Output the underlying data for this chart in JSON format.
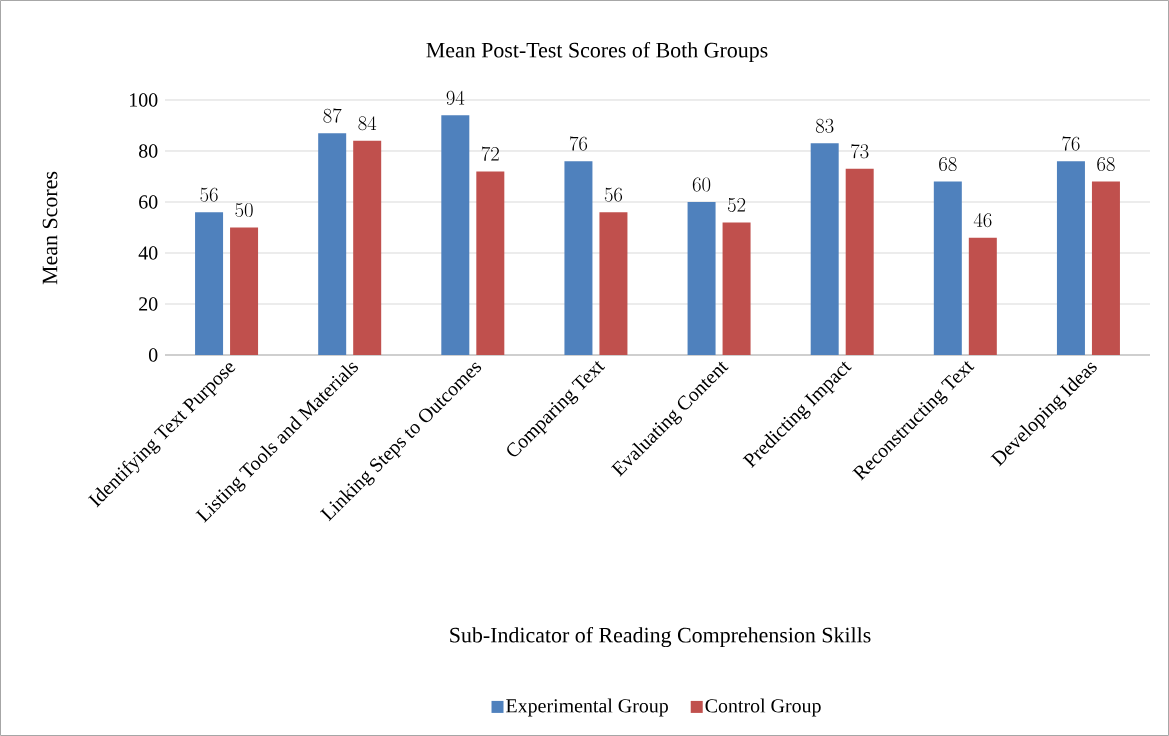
{
  "chart_data": {
    "type": "bar",
    "title": "Mean Post-Test Scores of Both Groups",
    "xlabel": "Sub-Indicator of Reading Comprehension Skills",
    "ylabel": "Mean Scores",
    "categories": [
      "Identifying Text Purpose",
      "Listing Tools and Materials",
      "Linking Steps to Outcomes",
      "Comparing Text",
      "Evaluating Content",
      "Predicting Impact",
      "Reconstructing Text",
      "Developing Ideas"
    ],
    "series": [
      {
        "name": "Experimental Group",
        "color": "#4f81bd",
        "values": [
          56,
          87,
          94,
          76,
          60,
          83,
          68,
          76
        ]
      },
      {
        "name": "Control Group",
        "color": "#c0504d",
        "values": [
          50,
          84,
          72,
          56,
          52,
          73,
          46,
          68
        ]
      }
    ],
    "ylim": [
      0,
      100
    ],
    "yticks": [
      0,
      20,
      40,
      60,
      80,
      100
    ],
    "grid": "y",
    "legend": "bottom",
    "data_labels": true
  }
}
